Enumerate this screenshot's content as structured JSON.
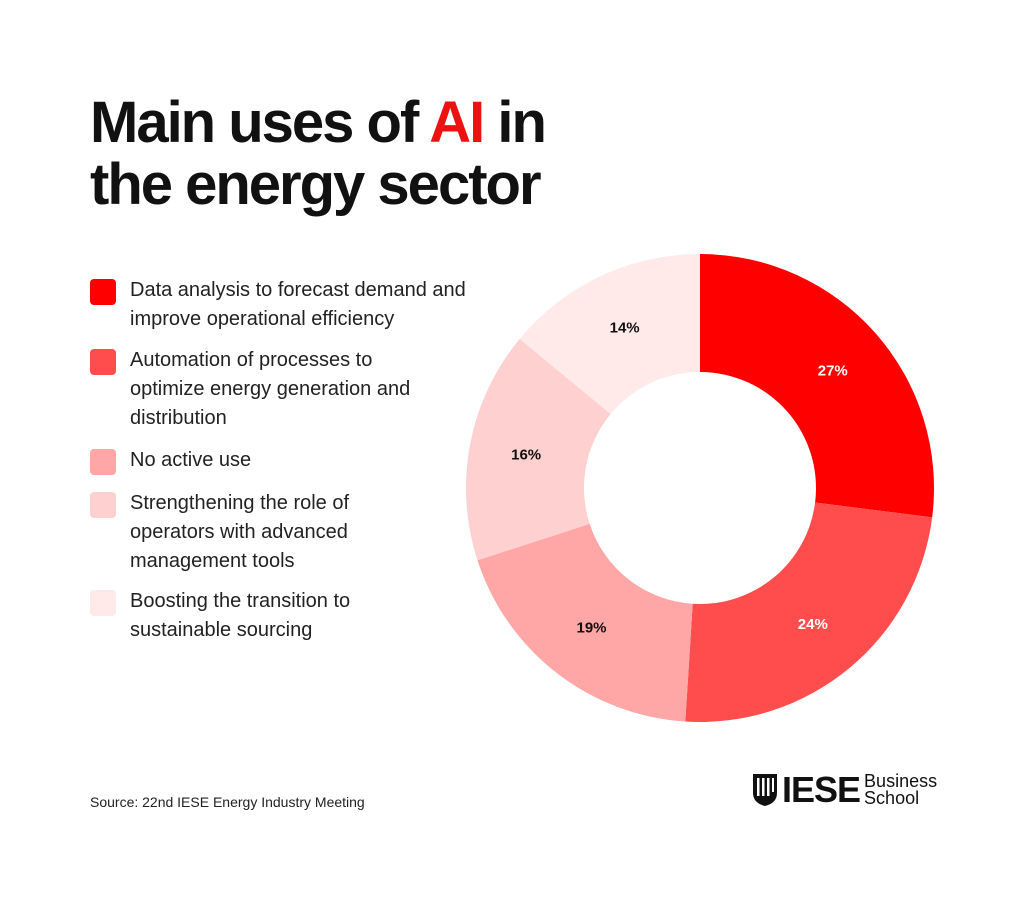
{
  "title": {
    "line1_prefix": "Main uses of ",
    "line1_accent": "AI",
    "line1_suffix": " in",
    "line2": "the energy sector"
  },
  "source": "Source: 22nd IESE Energy Industry Meeting",
  "logo": {
    "name": "IESE",
    "sub1": "Business",
    "sub2": "School"
  },
  "chart_data": {
    "type": "pie",
    "donut": true,
    "categories": [
      "Data analysis to forecast demand and improve operational efficiency",
      "Automation of processes to optimize energy generation and distribution",
      "No active use",
      "Strengthening the role of operators with advanced management tools",
      "Boosting the transition to sustainable sourcing"
    ],
    "values": [
      27,
      24,
      19,
      16,
      14
    ],
    "labels": [
      "27%",
      "24%",
      "19%",
      "16%",
      "14%"
    ],
    "colors": [
      "#ff0000",
      "#ff4d4d",
      "#ffa6a6",
      "#ffd0d0",
      "#ffe9e9"
    ],
    "label_colors": [
      "#ffffff",
      "#ffffff",
      "#111111",
      "#111111",
      "#111111"
    ],
    "legend_position": "left"
  }
}
